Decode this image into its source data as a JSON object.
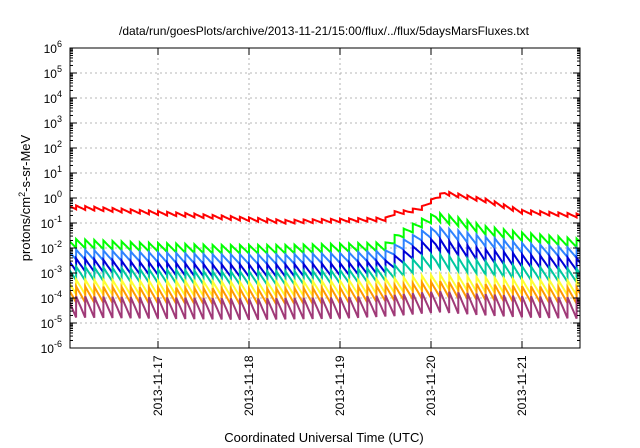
{
  "chart_data": {
    "type": "line",
    "title": "/data/run/goesPlots/archive/2013-11-21/15:00/flux/../flux/5daysMarsFluxes.txt",
    "xlabel": "Coordinated Universal Time (UTC)",
    "ylabel": {
      "prefix": "protons/cm",
      "sup": "2",
      "suffix": "-s-sr-MeV"
    },
    "x_unit": "days after 2013-11-16 00:00 UTC",
    "xlim": [
      0.0,
      5.0
    ],
    "yscale": "log",
    "ylim_exp": [
      -6,
      6
    ],
    "grid": true,
    "legend": "none",
    "x_ticks": [
      {
        "label": "2013-11-17",
        "value": 1.0
      },
      {
        "label": "2013-11-18",
        "value": 2.0
      },
      {
        "label": "2013-11-19",
        "value": 3.0
      },
      {
        "label": "2013-11-20",
        "value": 4.0
      },
      {
        "label": "2013-11-21",
        "value": 5.0
      }
    ],
    "y_ticks": [
      {
        "base": "10",
        "exp": "-6",
        "value": -6
      },
      {
        "base": "10",
        "exp": "-5",
        "value": -5
      },
      {
        "base": "10",
        "exp": "-4",
        "value": -4
      },
      {
        "base": "10",
        "exp": "-3",
        "value": -3
      },
      {
        "base": "10",
        "exp": "-2",
        "value": -2
      },
      {
        "base": "10",
        "exp": "-1",
        "value": -1
      },
      {
        "base": "10",
        "exp": "0",
        "value": 0
      },
      {
        "base": "10",
        "exp": "1",
        "value": 1
      },
      {
        "base": "10",
        "exp": "2",
        "value": 2
      },
      {
        "base": "10",
        "exp": "3",
        "value": 3
      },
      {
        "base": "10",
        "exp": "4",
        "value": 4
      },
      {
        "base": "10",
        "exp": "5",
        "value": 5
      },
      {
        "base": "10",
        "exp": "6",
        "value": 6
      }
    ],
    "series": [
      {
        "color": "#ff0000",
        "sawtooth": 0.15,
        "points": [
          [
            0.0,
            -0.35
          ],
          [
            0.8,
            -0.55
          ],
          [
            1.6,
            -0.75
          ],
          [
            2.4,
            -0.95
          ],
          [
            3.0,
            -0.9
          ],
          [
            3.5,
            -0.85
          ],
          [
            3.6,
            -0.6
          ],
          [
            3.75,
            -0.55
          ],
          [
            3.9,
            -0.4
          ],
          [
            4.05,
            0.0
          ],
          [
            4.15,
            0.2
          ],
          [
            4.3,
            0.1
          ],
          [
            4.6,
            -0.1
          ],
          [
            5.0,
            -0.55
          ],
          [
            5.6,
            -0.7
          ]
        ]
      },
      {
        "color": "#00ff00",
        "sawtooth": 0.35,
        "points": [
          [
            0.0,
            -1.8
          ],
          [
            0.8,
            -1.95
          ],
          [
            1.6,
            -2.05
          ],
          [
            2.4,
            -2.05
          ],
          [
            3.0,
            -2.0
          ],
          [
            3.5,
            -1.95
          ],
          [
            3.65,
            -1.5
          ],
          [
            3.9,
            -1.0
          ],
          [
            4.05,
            -0.75
          ],
          [
            4.3,
            -0.95
          ],
          [
            4.6,
            -1.3
          ],
          [
            5.0,
            -1.55
          ],
          [
            5.6,
            -1.8
          ]
        ]
      },
      {
        "color": "#2f83ff",
        "sawtooth": 0.4,
        "points": [
          [
            0.0,
            -2.25
          ],
          [
            0.8,
            -2.35
          ],
          [
            1.6,
            -2.45
          ],
          [
            2.4,
            -2.45
          ],
          [
            3.0,
            -2.4
          ],
          [
            3.5,
            -2.3
          ],
          [
            3.65,
            -1.95
          ],
          [
            3.9,
            -1.5
          ],
          [
            4.05,
            -1.35
          ],
          [
            4.3,
            -1.5
          ],
          [
            4.6,
            -1.75
          ],
          [
            5.0,
            -2.0
          ],
          [
            5.6,
            -2.2
          ]
        ]
      },
      {
        "color": "#0000d8",
        "sawtooth": 0.5,
        "points": [
          [
            0.0,
            -2.65
          ],
          [
            0.8,
            -2.8
          ],
          [
            1.6,
            -2.9
          ],
          [
            2.4,
            -2.9
          ],
          [
            3.0,
            -2.85
          ],
          [
            3.5,
            -2.75
          ],
          [
            3.65,
            -2.45
          ],
          [
            3.9,
            -2.0
          ],
          [
            4.05,
            -1.85
          ],
          [
            4.3,
            -2.05
          ],
          [
            4.6,
            -2.3
          ],
          [
            5.0,
            -2.5
          ],
          [
            5.6,
            -2.65
          ]
        ]
      },
      {
        "color": "#00c8a0",
        "sawtooth": 0.55,
        "points": [
          [
            0.0,
            -3.0
          ],
          [
            0.8,
            -3.1
          ],
          [
            1.6,
            -3.2
          ],
          [
            2.4,
            -3.2
          ],
          [
            3.0,
            -3.15
          ],
          [
            3.5,
            -3.05
          ],
          [
            3.7,
            -2.85
          ],
          [
            3.9,
            -2.6
          ],
          [
            4.05,
            -2.5
          ],
          [
            4.3,
            -2.65
          ],
          [
            4.6,
            -2.8
          ],
          [
            5.0,
            -3.0
          ],
          [
            5.6,
            -3.1
          ]
        ]
      },
      {
        "color": "#ffff33",
        "sawtooth": 0.6,
        "points": [
          [
            0.0,
            -3.55
          ],
          [
            1.0,
            -3.6
          ],
          [
            2.0,
            -3.65
          ],
          [
            3.0,
            -3.6
          ],
          [
            3.6,
            -3.5
          ],
          [
            3.9,
            -3.4
          ],
          [
            4.1,
            -3.35
          ],
          [
            4.5,
            -3.45
          ],
          [
            5.0,
            -3.55
          ],
          [
            5.6,
            -3.6
          ]
        ]
      },
      {
        "color": "#ff9a00",
        "sawtooth": 0.65,
        "points": [
          [
            0.0,
            -3.85
          ],
          [
            1.0,
            -3.9
          ],
          [
            2.0,
            -3.95
          ],
          [
            3.0,
            -3.9
          ],
          [
            3.6,
            -3.8
          ],
          [
            3.9,
            -3.7
          ],
          [
            4.1,
            -3.65
          ],
          [
            4.5,
            -3.75
          ],
          [
            5.0,
            -3.85
          ],
          [
            5.6,
            -3.9
          ]
        ]
      },
      {
        "color": "#a03a78",
        "sawtooth": 0.85,
        "points": [
          [
            0.0,
            -4.35
          ],
          [
            1.0,
            -4.4
          ],
          [
            2.0,
            -4.45
          ],
          [
            3.0,
            -4.4
          ],
          [
            3.6,
            -4.3
          ],
          [
            3.9,
            -4.2
          ],
          [
            4.1,
            -4.15
          ],
          [
            4.5,
            -4.25
          ],
          [
            5.0,
            -4.35
          ],
          [
            5.6,
            -4.4
          ]
        ]
      }
    ]
  }
}
